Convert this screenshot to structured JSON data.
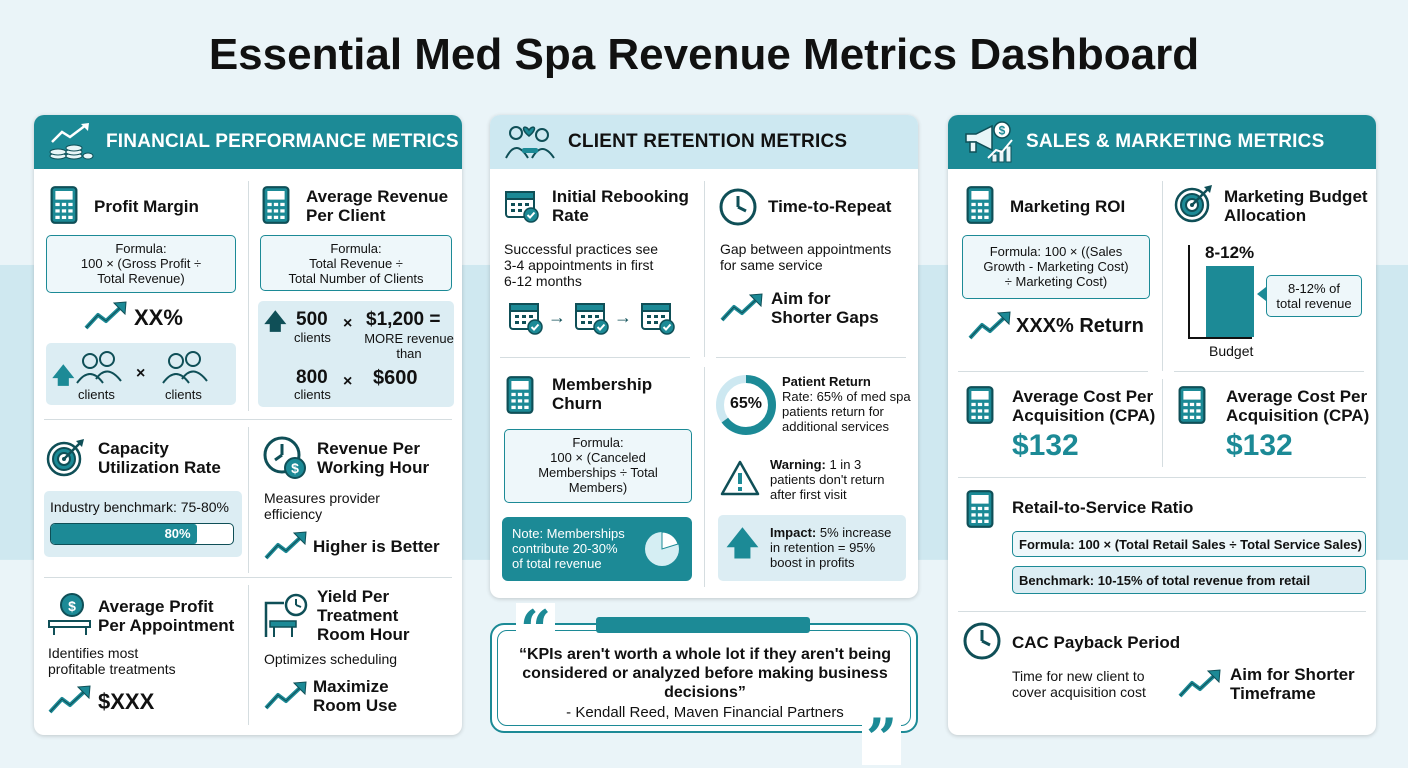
{
  "title": "Essential Med Spa Revenue Metrics Dashboard",
  "colors": {
    "accent": "#1c8a96",
    "light": "#cde8f1",
    "bg": "#eaf4f8"
  },
  "financial": {
    "header": "FINANCIAL PERFORMANCE METRICS",
    "profit_margin": {
      "title": "Profit Margin",
      "formula": "Formula:\n100 × (Gross Profit ÷\nTotal Revenue)",
      "value": "XX%",
      "clients_a": "clients",
      "times": "×",
      "clients_b": "clients"
    },
    "arpc": {
      "title": "Average Revenue\nPer Client",
      "formula": "Formula:\nTotal Revenue ÷\nTotal Number of Clients",
      "n1": "500",
      "c1": "clients",
      "x1": "×",
      "p1": "$1,200 =",
      "more": "MORE revenue\nthan",
      "n2": "800",
      "c2": "clients",
      "x2": "×",
      "p2": "$600"
    },
    "capacity": {
      "title": "Capacity\nUtilization Rate",
      "benchmark": "Industry benchmark: 75-80%",
      "bar_label": "80%",
      "bar_value": 0.8
    },
    "rpwh": {
      "title": "Revenue Per\nWorking Hour",
      "desc": "Measures provider\nefficiency",
      "cta": "Higher is Better"
    },
    "appt": {
      "title": "Average Profit\nPer Appointment",
      "desc": "Identifies most\nprofitable treatments",
      "value": "$XXX"
    },
    "yield": {
      "title": "Yield Per\nTreatment\nRoom Hour",
      "desc": "Optimizes scheduling",
      "cta": "Maximize\nRoom Use"
    }
  },
  "retention": {
    "header": "CLIENT RETENTION METRICS",
    "rebook": {
      "title": "Initial Rebooking\nRate",
      "desc": "Successful practices see\n3-4 appointments in first\n6-12 months"
    },
    "repeat": {
      "title": "Time-to-Repeat",
      "desc": "Gap between appointments\nfor same service",
      "cta": "Aim for\nShorter Gaps"
    },
    "churn": {
      "title": "Membership\nChurn",
      "formula": "Formula:\n100 × (Canceled\nMemberships ÷ Total\nMembers)",
      "note": "Note: Memberships\ncontribute 20-30%\nof total revenue"
    },
    "return": {
      "pct": "65%",
      "pct_value": 0.65,
      "label": "Patient Return",
      "text": "Rate: 65% of med spa\npatients return for\nadditional services"
    },
    "warning": {
      "label": "Warning:",
      "text": "1 in 3\npatients don't return\nafter first visit"
    },
    "impact": {
      "label": "Impact:",
      "text": "5% increase\nin retention = 95%\nboost in profits"
    }
  },
  "quote": {
    "text": "“KPIs aren't worth a whole lot if they aren't being\nconsidered or analyzed before making business\ndecisions”",
    "author": "- Kendall Reed, Maven Financial Partners"
  },
  "sales": {
    "header": "SALES & MARKETING METRICS",
    "roi": {
      "title": "Marketing ROI",
      "formula": "Formula: 100 × ((Sales\nGrowth - Marketing Cost)\n÷ Marketing Cost)",
      "value": "XXX% Return"
    },
    "budget": {
      "title": "Marketing Budget\nAllocation",
      "bar_label": "8-12%",
      "callout": "8-12% of\ntotal revenue",
      "axis": "Budget"
    },
    "cpa1": {
      "title": "Average Cost Per\nAcquisition (CPA)",
      "value": "$132"
    },
    "cpa2": {
      "title": "Average Cost Per\nAcquisition (CPA)",
      "value": "$132"
    },
    "retail": {
      "title": "Retail-to-Service Ratio",
      "formula": "Formula: 100 × (Total Retail Sales ÷ Total Service Sales)",
      "benchmark": "Benchmark: 10-15% of total revenue from retail"
    },
    "cac": {
      "title": "CAC Payback Period",
      "desc": "Time for new client to\ncover acquisition cost",
      "cta": "Aim for Shorter\nTimeframe"
    }
  }
}
